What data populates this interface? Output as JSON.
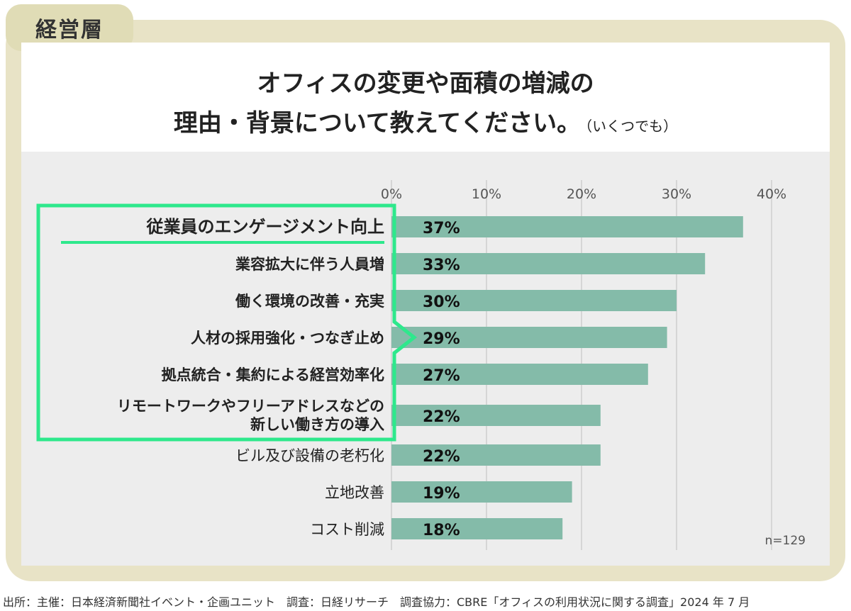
{
  "tag": "経営層",
  "title": {
    "line1": "オフィスの変更や面積の増減の",
    "line2": "理由・背景について教えてください。",
    "note": "（いくつでも）"
  },
  "sample_note": "n=129",
  "source": "出所：主催：日本経済新聞社イベント・企画ユニット　調査：日経リサーチ　調査協力：CBRE「オフィスの利用状況に関する調査」2024 年 7 月",
  "colors": {
    "bar": "#84bba9",
    "highlight": "#2ee88c",
    "frame": "#e8e3c6",
    "grid": "#cfcfcf"
  },
  "chart_data": {
    "type": "bar",
    "orientation": "horizontal",
    "categories": [
      "従業員のエンゲージメント向上",
      "業容拡大に伴う人員増",
      "働く環境の改善・充実",
      "人材の採用強化・つなぎ止め",
      "拠点統合・集約による経営効率化",
      "リモートワークやフリーアドレスなどの\n新しい働き方の導入",
      "ビル及び設備の老朽化",
      "立地改善",
      "コスト削減"
    ],
    "values": [
      37,
      33,
      30,
      29,
      27,
      22,
      22,
      19,
      18
    ],
    "value_labels": [
      "37%",
      "33%",
      "30%",
      "29%",
      "27%",
      "22%",
      "22%",
      "19%",
      "18%"
    ],
    "ticks": [
      0,
      10,
      20,
      30,
      40
    ],
    "tick_labels": [
      "0%",
      "10%",
      "20%",
      "30%",
      "40%"
    ],
    "xlim": [
      0,
      40
    ],
    "highlighted_count": 6,
    "grid": true
  }
}
